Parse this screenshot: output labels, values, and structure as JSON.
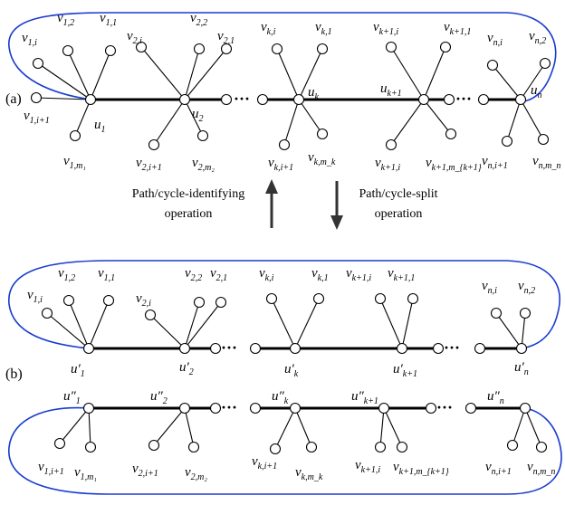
{
  "panels": {
    "a_label": "(a)",
    "b_label": "(b)"
  },
  "operations": {
    "up_line1": "Path/cycle-identifying",
    "up_line2": "operation",
    "down_line1": "Path/cycle-split",
    "down_line2": "operation"
  },
  "colors": {
    "cycle": "#1a3ccf",
    "edge": "#000000",
    "arrow": "#333333"
  },
  "dots": "···",
  "panel_a": {
    "hubs": [
      {
        "base": "u",
        "sub": "1"
      },
      {
        "base": "u",
        "sub": "2"
      },
      {
        "base": "u",
        "sub": "k"
      },
      {
        "base": "u",
        "sub": "k+1"
      },
      {
        "base": "u",
        "sub": "n"
      }
    ],
    "leaves": [
      {
        "base": "v",
        "sub": "1,i"
      },
      {
        "base": "v",
        "sub": "1,2"
      },
      {
        "base": "v",
        "sub": "1,1"
      },
      {
        "base": "v",
        "sub": "1,i+1"
      },
      {
        "base": "v",
        "sub": "1,m₁"
      },
      {
        "base": "v",
        "sub": "2,i"
      },
      {
        "base": "v",
        "sub": "2,2"
      },
      {
        "base": "v",
        "sub": "2,1"
      },
      {
        "base": "v",
        "sub": "2,i+1"
      },
      {
        "base": "v",
        "sub": "2,m₂"
      },
      {
        "base": "v",
        "sub": "k,i"
      },
      {
        "base": "v",
        "sub": "k,1"
      },
      {
        "base": "v",
        "sub": "k,i+1"
      },
      {
        "base": "v",
        "sub": "k,m_k"
      },
      {
        "base": "v",
        "sub": "k+1,i"
      },
      {
        "base": "v",
        "sub": "k+1,1"
      },
      {
        "base": "v",
        "sub": "k+1,i"
      },
      {
        "base": "v",
        "sub": "k+1,m_{k+1}"
      },
      {
        "base": "v",
        "sub": "n,i"
      },
      {
        "base": "v",
        "sub": "n,2"
      },
      {
        "base": "v",
        "sub": "n,i+1"
      },
      {
        "base": "v",
        "sub": "n,m_n"
      }
    ]
  },
  "panel_b_top": {
    "hubs": [
      {
        "base": "u′",
        "sub": "1"
      },
      {
        "base": "u′",
        "sub": "2"
      },
      {
        "base": "u′",
        "sub": "k"
      },
      {
        "base": "u′",
        "sub": "k+1"
      },
      {
        "base": "u′",
        "sub": "n"
      }
    ],
    "leaves": [
      {
        "base": "v",
        "sub": "1,i"
      },
      {
        "base": "v",
        "sub": "1,2"
      },
      {
        "base": "v",
        "sub": "1,1"
      },
      {
        "base": "v",
        "sub": "2,i"
      },
      {
        "base": "v",
        "sub": "2,2"
      },
      {
        "base": "v",
        "sub": "2,1"
      },
      {
        "base": "v",
        "sub": "k,i"
      },
      {
        "base": "v",
        "sub": "k,1"
      },
      {
        "base": "v",
        "sub": "k+1,i"
      },
      {
        "base": "v",
        "sub": "k+1,1"
      },
      {
        "base": "v",
        "sub": "n,i"
      },
      {
        "base": "v",
        "sub": "n,2"
      }
    ]
  },
  "panel_b_bottom": {
    "hubs": [
      {
        "base": "u″",
        "sub": "1"
      },
      {
        "base": "u″",
        "sub": "2"
      },
      {
        "base": "u″",
        "sub": "k"
      },
      {
        "base": "u″",
        "sub": "k+1"
      },
      {
        "base": "u″",
        "sub": "n"
      }
    ],
    "leaves": [
      {
        "base": "v",
        "sub": "1,i+1"
      },
      {
        "base": "v",
        "sub": "1,m₁"
      },
      {
        "base": "v",
        "sub": "2,i+1"
      },
      {
        "base": "v",
        "sub": "2,m₂"
      },
      {
        "base": "v",
        "sub": "k,i+1"
      },
      {
        "base": "v",
        "sub": "k,m_k"
      },
      {
        "base": "v",
        "sub": "k+1,i"
      },
      {
        "base": "v",
        "sub": "k+1,m_{k+1}"
      },
      {
        "base": "v",
        "sub": "n,i+1"
      },
      {
        "base": "v",
        "sub": "n,m_n"
      }
    ]
  }
}
